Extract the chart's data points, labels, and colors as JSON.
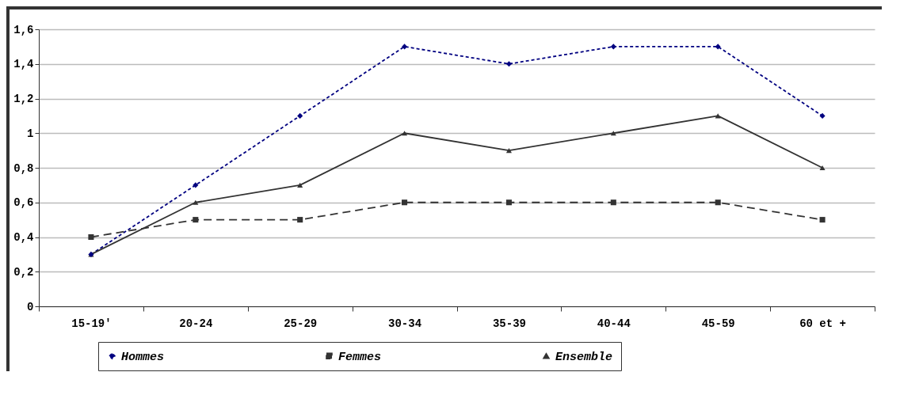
{
  "chart_data": {
    "type": "line",
    "categories": [
      "15-19'",
      "20-24",
      "25-29",
      "30-34",
      "35-39",
      "40-44",
      "45-59",
      "60 et +"
    ],
    "series": [
      {
        "name": "Hommes",
        "color": "#000080",
        "marker": "diamond",
        "line_style": "dashed",
        "values": [
          0.3,
          0.7,
          1.1,
          1.5,
          1.4,
          1.5,
          1.5,
          1.1
        ]
      },
      {
        "name": "Femmes",
        "color": "#333333",
        "marker": "square",
        "line_style": "longdash",
        "values": [
          0.4,
          0.5,
          0.5,
          0.6,
          0.6,
          0.6,
          0.6,
          0.5
        ]
      },
      {
        "name": "Ensemble",
        "color": "#333333",
        "marker": "triangle",
        "line_style": "solid",
        "values": [
          0.3,
          0.6,
          0.7,
          1.0,
          0.9,
          1.0,
          1.1,
          0.8
        ]
      }
    ],
    "ylim": [
      0,
      1.6
    ],
    "yticks": [
      0,
      {
        "value": 0.2,
        "label": "0,2"
      },
      {
        "value": 0.4,
        "label": "0,4"
      },
      {
        "value": 0.6,
        "label": "0,6"
      },
      {
        "value": 0.8,
        "label": "0,8"
      },
      1,
      {
        "value": 1.2,
        "label": "1,2"
      },
      {
        "value": 1.4,
        "label": "1,4"
      },
      {
        "value": 1.6,
        "label": "1,6"
      }
    ],
    "grid": "y",
    "legend": "bottom"
  }
}
